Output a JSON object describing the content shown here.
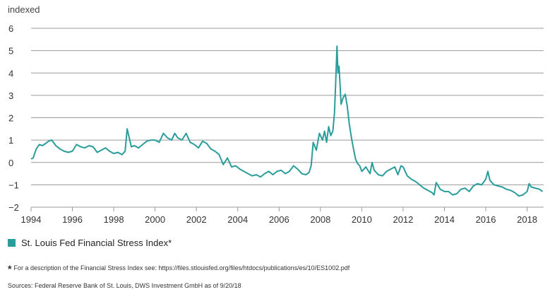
{
  "chart_data": {
    "type": "line",
    "ylabel": "indexed",
    "ylim": [
      -2,
      6
    ],
    "yticks": [
      "6",
      "5",
      "4",
      "3",
      "2",
      "1",
      "0",
      "−1",
      "−2"
    ],
    "ytick_values": [
      6,
      5,
      4,
      3,
      2,
      1,
      0,
      -1,
      -2
    ],
    "xlim": [
      1994.0,
      2018.8
    ],
    "xticks": [
      "1994",
      "1996",
      "1998",
      "2000",
      "2002",
      "2004",
      "2006",
      "2008",
      "2010",
      "2012",
      "2014",
      "2016",
      "2018"
    ],
    "xtick_values": [
      1994,
      1996,
      1998,
      2000,
      2002,
      2004,
      2006,
      2008,
      2010,
      2012,
      2014,
      2016,
      2018
    ],
    "grid": true,
    "legend_position": "bottom-left",
    "series": [
      {
        "name": "St. Louis Fed Financial Stress Index*",
        "color": "#2a9d9b",
        "x": [
          1994.0,
          1994.1,
          1994.25,
          1994.4,
          1994.55,
          1994.7,
          1994.85,
          1995.0,
          1995.2,
          1995.4,
          1995.6,
          1995.8,
          1996.0,
          1996.2,
          1996.4,
          1996.6,
          1996.8,
          1997.0,
          1997.2,
          1997.4,
          1997.6,
          1997.8,
          1998.0,
          1998.2,
          1998.4,
          1998.55,
          1998.65,
          1998.75,
          1998.85,
          1999.0,
          1999.2,
          1999.4,
          1999.6,
          1999.8,
          2000.0,
          2000.2,
          2000.4,
          2000.6,
          2000.8,
          2000.95,
          2001.1,
          2001.3,
          2001.5,
          2001.7,
          2001.9,
          2002.1,
          2002.3,
          2002.5,
          2002.7,
          2002.9,
          2003.1,
          2003.3,
          2003.5,
          2003.7,
          2003.9,
          2004.1,
          2004.3,
          2004.5,
          2004.7,
          2004.9,
          2005.1,
          2005.3,
          2005.5,
          2005.7,
          2005.9,
          2006.1,
          2006.3,
          2006.5,
          2006.7,
          2006.9,
          2007.1,
          2007.3,
          2007.45,
          2007.55,
          2007.65,
          2007.8,
          2007.95,
          2008.1,
          2008.2,
          2008.3,
          2008.4,
          2008.5,
          2008.6,
          2008.68,
          2008.74,
          2008.8,
          2008.85,
          2008.9,
          2008.95,
          2009.0,
          2009.1,
          2009.2,
          2009.3,
          2009.4,
          2009.5,
          2009.6,
          2009.7,
          2009.8,
          2009.9,
          2010.0,
          2010.2,
          2010.4,
          2010.5,
          2010.6,
          2010.8,
          2011.0,
          2011.2,
          2011.4,
          2011.6,
          2011.75,
          2011.9,
          2012.0,
          2012.2,
          2012.4,
          2012.6,
          2012.8,
          2013.0,
          2013.2,
          2013.4,
          2013.5,
          2013.6,
          2013.8,
          2014.0,
          2014.2,
          2014.4,
          2014.6,
          2014.8,
          2015.0,
          2015.2,
          2015.4,
          2015.6,
          2015.8,
          2016.0,
          2016.1,
          2016.2,
          2016.4,
          2016.6,
          2016.8,
          2017.0,
          2017.2,
          2017.4,
          2017.6,
          2017.8,
          2018.0,
          2018.1,
          2018.2,
          2018.4,
          2018.6,
          2018.75
        ],
        "y": [
          0.15,
          0.2,
          0.6,
          0.8,
          0.75,
          0.85,
          0.95,
          1.0,
          0.75,
          0.6,
          0.5,
          0.45,
          0.5,
          0.8,
          0.7,
          0.65,
          0.75,
          0.7,
          0.45,
          0.55,
          0.65,
          0.5,
          0.4,
          0.45,
          0.35,
          0.5,
          1.5,
          1.1,
          0.7,
          0.75,
          0.65,
          0.8,
          0.95,
          1.0,
          1.0,
          0.9,
          1.3,
          1.1,
          1.0,
          1.3,
          1.1,
          1.0,
          1.3,
          0.9,
          0.8,
          0.65,
          0.95,
          0.85,
          0.6,
          0.5,
          0.35,
          -0.1,
          0.2,
          -0.2,
          -0.15,
          -0.3,
          -0.4,
          -0.5,
          -0.6,
          -0.55,
          -0.65,
          -0.5,
          -0.4,
          -0.55,
          -0.4,
          -0.35,
          -0.5,
          -0.4,
          -0.15,
          -0.3,
          -0.5,
          -0.55,
          -0.45,
          -0.15,
          0.9,
          0.55,
          1.3,
          1.0,
          1.4,
          0.9,
          1.6,
          1.2,
          1.4,
          2.2,
          3.6,
          5.2,
          4.0,
          4.3,
          3.5,
          2.6,
          2.9,
          3.05,
          2.5,
          1.7,
          1.1,
          0.6,
          0.15,
          -0.05,
          -0.15,
          -0.4,
          -0.2,
          -0.5,
          0.0,
          -0.35,
          -0.55,
          -0.6,
          -0.4,
          -0.3,
          -0.2,
          -0.55,
          -0.15,
          -0.2,
          -0.6,
          -0.75,
          -0.85,
          -1.0,
          -1.15,
          -1.25,
          -1.35,
          -1.45,
          -0.9,
          -1.2,
          -1.3,
          -1.3,
          -1.45,
          -1.4,
          -1.2,
          -1.15,
          -1.3,
          -1.05,
          -0.95,
          -1.0,
          -0.75,
          -0.4,
          -0.8,
          -1.0,
          -1.05,
          -1.1,
          -1.2,
          -1.25,
          -1.35,
          -1.5,
          -1.45,
          -1.3,
          -0.95,
          -1.1,
          -1.15,
          -1.2,
          -1.3
        ]
      }
    ]
  },
  "legend": {
    "label": "St. Louis Fed Financial Stress Index*",
    "color": "#2a9d9b"
  },
  "footnote": {
    "star": "*",
    "text": "For a description of the Financial Stress Index see: https://files.stlouisfed.org/files/htdocs/publications/es/10/ES1002.pdf"
  },
  "sources": "Sources: Federal Reserve Bank of St. Louis, DWS Investment GmbH as of 9/20/18"
}
